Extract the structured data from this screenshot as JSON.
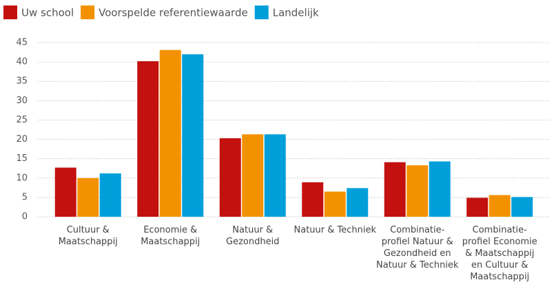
{
  "chart_data": {
    "type": "bar",
    "categories": [
      "Cultuur & Maatschappij",
      "Economie & Maatschappij",
      "Natuur & Gezondheid",
      "Natuur & Techniek",
      "Combinatie-profiel Natuur & Gezondheid en Natuur & Techniek",
      "Combinatie-profiel Economie & Maatschappij en Cultuur & Maatschappij"
    ],
    "series": [
      {
        "name": "Uw school",
        "color": "#c3110f",
        "values": [
          12.7,
          40.2,
          20.3,
          8.9,
          14.1,
          4.9
        ]
      },
      {
        "name": "Voorspelde referentiewaarde",
        "color": "#f39200",
        "values": [
          10,
          43.1,
          21.3,
          6.5,
          13.3,
          5.6
        ]
      },
      {
        "name": "Landelijk",
        "color": "#009fda",
        "values": [
          11.2,
          42,
          21.3,
          7.4,
          14.3,
          5.1
        ]
      }
    ],
    "ylim": [
      0,
      45
    ],
    "yticks": [
      0,
      5,
      10,
      15,
      20,
      25,
      30,
      35,
      40,
      45
    ],
    "grid": true,
    "legend": "top"
  }
}
